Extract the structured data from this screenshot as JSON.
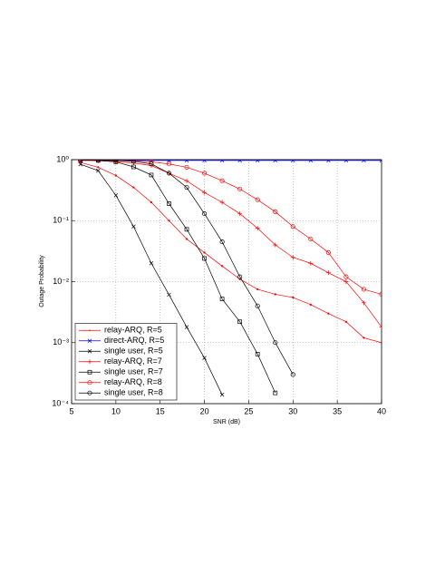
{
  "chart_data": {
    "type": "line",
    "xlabel": "SNR (dB)",
    "ylabel": "Outage Probability",
    "x": [
      6,
      8,
      10,
      12,
      14,
      16,
      18,
      20,
      22,
      24,
      26,
      28,
      30,
      32,
      34,
      36,
      38,
      40
    ],
    "series": [
      {
        "name": "relay-ARQ, R=5",
        "color": "#ff0000",
        "marker": "point",
        "values": [
          0.9,
          0.75,
          0.55,
          0.35,
          0.2,
          0.1,
          0.05,
          0.03,
          0.018,
          0.011,
          0.0075,
          0.0062,
          0.0055,
          0.0042,
          0.003,
          0.0022,
          0.0012,
          0.001
        ]
      },
      {
        "name": "direct-ARQ, R=5",
        "color": "#0000ff",
        "marker": "x",
        "values": [
          0.97,
          0.97,
          0.97,
          0.97,
          0.97,
          0.97,
          0.97,
          0.97,
          0.97,
          0.97,
          0.97,
          0.97,
          0.97,
          0.97,
          0.97,
          0.97,
          0.97,
          0.97
        ]
      },
      {
        "name": "single user, R=5",
        "color": "#000000",
        "marker": "x",
        "values": [
          0.84,
          0.66,
          0.26,
          0.08,
          0.02,
          0.0061,
          0.0018,
          0.00056,
          0.00014,
          null,
          null,
          null,
          null,
          null,
          null,
          null,
          null,
          null
        ]
      },
      {
        "name": "relay-ARQ, R=7",
        "color": "#ff0000",
        "marker": "plus",
        "values": [
          0.98,
          0.96,
          0.93,
          0.88,
          0.8,
          0.6,
          0.45,
          0.29,
          0.2,
          0.13,
          0.075,
          0.04,
          0.025,
          0.02,
          0.014,
          0.01,
          0.0045,
          0.0018
        ]
      },
      {
        "name": "single user, R=7",
        "color": "#000000",
        "marker": "square",
        "values": [
          0.99,
          0.97,
          0.92,
          0.76,
          0.56,
          0.19,
          0.072,
          0.024,
          0.0052,
          0.0022,
          0.00065,
          0.00015,
          null,
          null,
          null,
          null,
          null,
          null
        ]
      },
      {
        "name": "relay-ARQ, R=8",
        "color": "#ff0000",
        "marker": "circle",
        "values": [
          0.99,
          0.98,
          0.97,
          0.95,
          0.92,
          0.85,
          0.75,
          0.6,
          0.45,
          0.33,
          0.22,
          0.14,
          0.08,
          0.05,
          0.03,
          0.012,
          0.0075,
          0.0062
        ]
      },
      {
        "name": "single user, R=8",
        "color": "#000000",
        "marker": "circle",
        "values": [
          0.99,
          0.98,
          0.97,
          0.94,
          0.85,
          0.6,
          0.35,
          0.13,
          0.045,
          0.012,
          0.004,
          0.001,
          0.0003,
          null,
          null,
          null,
          null,
          null
        ]
      }
    ],
    "xlim": [
      5,
      40
    ],
    "xticks": [
      5,
      10,
      15,
      20,
      25,
      30,
      35,
      40
    ],
    "ylim": [
      0.0001,
      1
    ],
    "log_y": true,
    "yticks": [
      {
        "value": 0.0001,
        "label": "10⁻⁴"
      },
      {
        "value": 0.001,
        "label": "10⁻³"
      },
      {
        "value": 0.01,
        "label": "10⁻²"
      },
      {
        "value": 0.1,
        "label": "10⁻¹"
      },
      {
        "value": 1,
        "label": "10⁰"
      }
    ],
    "grid": true,
    "legend": "lower left"
  }
}
